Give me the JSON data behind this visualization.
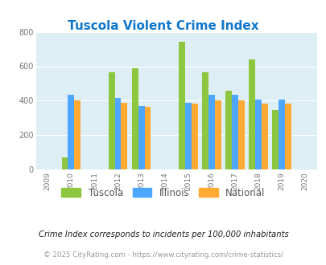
{
  "title": "Tuscola Violent Crime Index",
  "subtitle": "Crime Index corresponds to incidents per 100,000 inhabitants",
  "footer": "© 2025 CityRating.com - https://www.cityrating.com/crime-statistics/",
  "years": [
    2009,
    2010,
    2011,
    2012,
    2013,
    2014,
    2015,
    2016,
    2017,
    2018,
    2019,
    2020
  ],
  "data_years": [
    2010,
    2012,
    2013,
    2015,
    2016,
    2017,
    2018,
    2019
  ],
  "tuscola": [
    70,
    565,
    590,
    740,
    565,
    460,
    640,
    345
  ],
  "illinois": [
    435,
    415,
    370,
    390,
    435,
    435,
    405,
    408
  ],
  "national": [
    403,
    388,
    365,
    383,
    400,
    400,
    383,
    383
  ],
  "bar_width": 0.27,
  "ylim": [
    0,
    800
  ],
  "yticks": [
    0,
    200,
    400,
    600,
    800
  ],
  "color_tuscola": "#8dc63f",
  "color_illinois": "#4da6ff",
  "color_national": "#ffaa33",
  "bg_color": "#ddeef5",
  "title_color": "#1177cc",
  "subtitle_color": "#222222",
  "footer_color": "#999999",
  "legend_label_tuscola": "Tuscola",
  "legend_label_illinois": "Illinois",
  "legend_label_national": "National"
}
